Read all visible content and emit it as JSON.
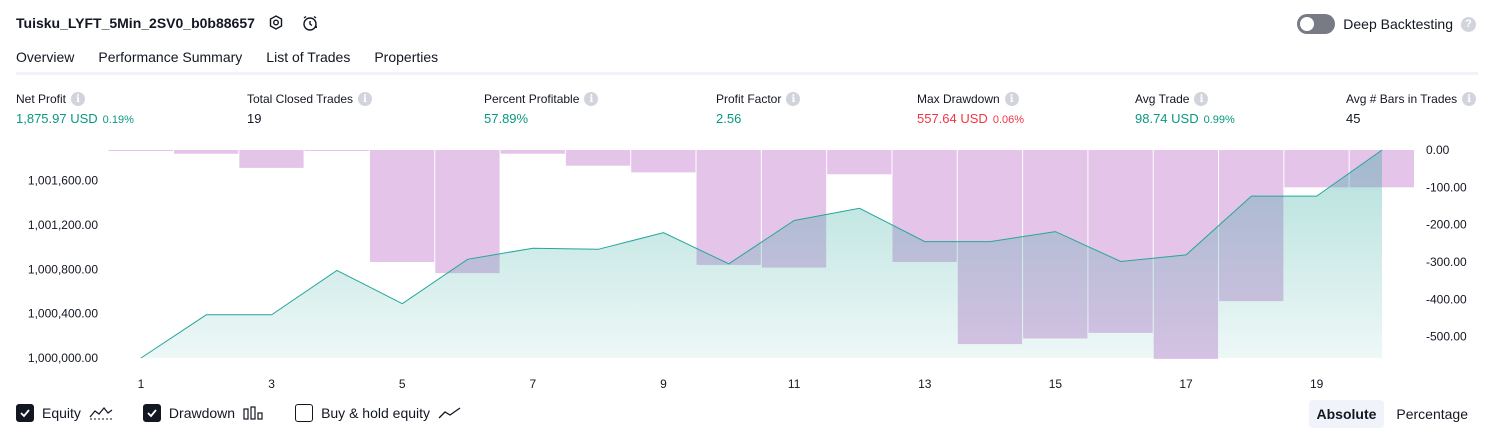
{
  "header": {
    "title": "Tuisku_LYFT_5Min_2SV0_b0b88657",
    "deep_backtesting_label": "Deep Backtesting",
    "deep_backtesting_on": false
  },
  "tabs": [
    {
      "label": "Overview",
      "active": true
    },
    {
      "label": "Performance Summary",
      "active": false
    },
    {
      "label": "List of Trades",
      "active": false
    },
    {
      "label": "Properties",
      "active": false
    }
  ],
  "stats": [
    {
      "label": "Net Profit",
      "value": "1,875.97 USD",
      "pct": "0.19%",
      "color": "#089981"
    },
    {
      "label": "Total Closed Trades",
      "value": "19",
      "pct": "",
      "color": "#131722"
    },
    {
      "label": "Percent Profitable",
      "value": "57.89%",
      "pct": "",
      "color": "#089981"
    },
    {
      "label": "Profit Factor",
      "value": "2.56",
      "pct": "",
      "color": "#089981"
    },
    {
      "label": "Max Drawdown",
      "value": "557.64 USD",
      "pct": "0.06%",
      "color": "#f23645"
    },
    {
      "label": "Avg Trade",
      "value": "98.74 USD",
      "pct": "0.99%",
      "color": "#089981"
    },
    {
      "label": "Avg # Bars in Trades",
      "value": "45",
      "pct": "",
      "color": "#131722"
    }
  ],
  "chart_data": {
    "type": "area",
    "x": [
      1,
      2,
      3,
      4,
      5,
      6,
      7,
      8,
      9,
      10,
      11,
      12,
      13,
      14,
      15,
      16,
      17,
      18,
      19,
      20
    ],
    "xticks": [
      "1",
      "3",
      "5",
      "7",
      "9",
      "11",
      "13",
      "15",
      "17",
      "19"
    ],
    "series": [
      {
        "values": [
          1000000,
          1000390,
          1000390,
          1000790,
          1000490,
          1000890,
          1000990,
          1000980,
          1001130,
          1000850,
          1001240,
          1001350,
          1001050,
          1001050,
          1001140,
          1000870,
          1000930,
          1001460,
          1001460,
          1001875.97
        ],
        "color": "#26a69a"
      },
      {
        "values": [
          -2,
          -10,
          -48,
          -1,
          -300,
          -330,
          -10,
          -42,
          -60,
          -308,
          -315,
          -65,
          -300,
          -520,
          -505,
          -490,
          -560,
          -405,
          -100,
          -100
        ],
        "color": "#ce93d8"
      }
    ],
    "y_left_ticks": [
      "1,001,600.00",
      "1,001,200.00",
      "1,000,800.00",
      "1,000,400.00",
      "1,000,000.00"
    ],
    "y_left_range": [
      1000000,
      1001875.97
    ],
    "y_right_ticks": [
      "0.00",
      "-100.00",
      "-200.00",
      "-300.00",
      "-400.00",
      "-500.00"
    ],
    "y_right_range": [
      -560,
      0
    ]
  },
  "legend": {
    "items": [
      {
        "label": "Equity",
        "checked": true,
        "icon": "equity-icon"
      },
      {
        "label": "Drawdown",
        "checked": true,
        "icon": "drawdown-icon"
      },
      {
        "label": "Buy & hold equity",
        "checked": false,
        "icon": "buy-hold-icon"
      }
    ]
  },
  "mode": {
    "absolute_label": "Absolute",
    "percentage_label": "Percentage",
    "active": "absolute"
  }
}
